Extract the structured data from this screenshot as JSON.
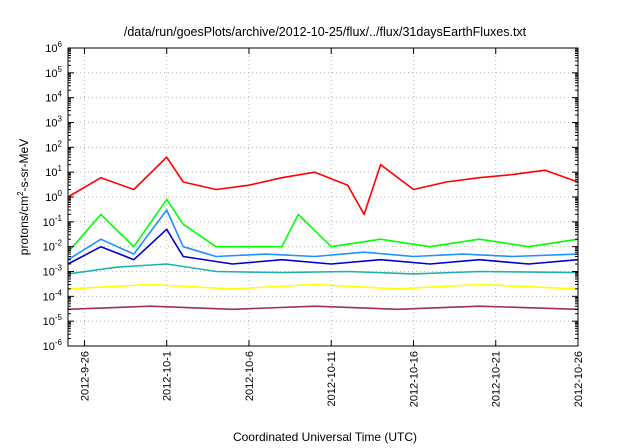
{
  "chart_data": {
    "type": "line",
    "title": "/data/run/goesPlots/archive/2012-10-25/flux/../flux/31daysEarthFluxes.txt",
    "xlabel": "Coordinated Universal Time (UTC)",
    "ylabel_parts": [
      "protons/cm",
      "2",
      "-s-sr-MeV"
    ],
    "y_scale": "log",
    "ylim_exponents": [
      -6,
      6
    ],
    "y_ticks": [
      {
        "base": "10",
        "exp": "-6"
      },
      {
        "base": "10",
        "exp": "-5"
      },
      {
        "base": "10",
        "exp": "-4"
      },
      {
        "base": "10",
        "exp": "-3"
      },
      {
        "base": "10",
        "exp": "-2"
      },
      {
        "base": "10",
        "exp": "-1"
      },
      {
        "base": "10",
        "exp": "0"
      },
      {
        "base": "10",
        "exp": "1"
      },
      {
        "base": "10",
        "exp": "2"
      },
      {
        "base": "10",
        "exp": "3"
      },
      {
        "base": "10",
        "exp": "4"
      },
      {
        "base": "10",
        "exp": "5"
      },
      {
        "base": "10",
        "exp": "6"
      }
    ],
    "x_range": [
      "2012-09-25",
      "2012-10-26"
    ],
    "x_ticks": [
      {
        "label": "2012-9-26",
        "date": "2012-09-26"
      },
      {
        "label": "2012-10-1",
        "date": "2012-10-01"
      },
      {
        "label": "2012-10-6",
        "date": "2012-10-06"
      },
      {
        "label": "2012-10-11",
        "date": "2012-10-11"
      },
      {
        "label": "2012-10-16",
        "date": "2012-10-16"
      },
      {
        "label": "2012-10-21",
        "date": "2012-10-21"
      },
      {
        "label": "2012-10-26",
        "date": "2012-10-26"
      }
    ],
    "grid": true,
    "legend": "none",
    "series": [
      {
        "color": "#ff0000",
        "x": [
          "2012-09-25",
          "2012-09-27",
          "2012-09-29",
          "2012-10-01",
          "2012-10-02",
          "2012-10-04",
          "2012-10-06",
          "2012-10-08",
          "2012-10-10",
          "2012-10-12",
          "2012-10-13",
          "2012-10-14",
          "2012-10-16",
          "2012-10-18",
          "2012-10-20",
          "2012-10-22",
          "2012-10-24",
          "2012-10-26"
        ],
        "y": [
          1.0,
          6.0,
          2.0,
          40.0,
          4.0,
          2.0,
          3.0,
          6.0,
          10.0,
          3.0,
          0.2,
          20.0,
          2.0,
          4.0,
          6.0,
          8.0,
          12.0,
          4.0
        ]
      },
      {
        "color": "#00ff00",
        "x": [
          "2012-09-25",
          "2012-09-27",
          "2012-09-29",
          "2012-10-01",
          "2012-10-02",
          "2012-10-04",
          "2012-10-06",
          "2012-10-08",
          "2012-10-09",
          "2012-10-11",
          "2012-10-14",
          "2012-10-17",
          "2012-10-20",
          "2012-10-23",
          "2012-10-26"
        ],
        "y": [
          0.006,
          0.2,
          0.01,
          0.8,
          0.08,
          0.01,
          0.01,
          0.01,
          0.2,
          0.01,
          0.02,
          0.01,
          0.02,
          0.01,
          0.02
        ]
      },
      {
        "color": "#1e90ff",
        "x": [
          "2012-09-25",
          "2012-09-27",
          "2012-09-29",
          "2012-10-01",
          "2012-10-02",
          "2012-10-04",
          "2012-10-07",
          "2012-10-10",
          "2012-10-13",
          "2012-10-16",
          "2012-10-19",
          "2012-10-22",
          "2012-10-26"
        ],
        "y": [
          0.003,
          0.02,
          0.005,
          0.3,
          0.01,
          0.004,
          0.005,
          0.004,
          0.006,
          0.004,
          0.005,
          0.004,
          0.005
        ]
      },
      {
        "color": "#0000cd",
        "x": [
          "2012-09-25",
          "2012-09-27",
          "2012-09-29",
          "2012-10-01",
          "2012-10-02",
          "2012-10-05",
          "2012-10-08",
          "2012-10-11",
          "2012-10-14",
          "2012-10-17",
          "2012-10-20",
          "2012-10-23",
          "2012-10-26"
        ],
        "y": [
          0.002,
          0.01,
          0.003,
          0.05,
          0.004,
          0.002,
          0.003,
          0.002,
          0.003,
          0.002,
          0.003,
          0.002,
          0.003
        ]
      },
      {
        "color": "#20b2aa",
        "x": [
          "2012-09-25",
          "2012-09-28",
          "2012-10-01",
          "2012-10-04",
          "2012-10-08",
          "2012-10-12",
          "2012-10-16",
          "2012-10-20",
          "2012-10-26"
        ],
        "y": [
          0.0008,
          0.0015,
          0.002,
          0.001,
          0.0009,
          0.001,
          0.0008,
          0.001,
          0.0009
        ]
      },
      {
        "color": "#ffff00",
        "x": [
          "2012-09-25",
          "2012-09-30",
          "2012-10-05",
          "2012-10-10",
          "2012-10-15",
          "2012-10-20",
          "2012-10-26"
        ],
        "y": [
          0.0002,
          0.0003,
          0.0002,
          0.0003,
          0.0002,
          0.0003,
          0.0002
        ]
      },
      {
        "color": "#9b3060",
        "x": [
          "2012-09-25",
          "2012-09-30",
          "2012-10-05",
          "2012-10-10",
          "2012-10-15",
          "2012-10-20",
          "2012-10-26"
        ],
        "y": [
          3e-05,
          4e-05,
          3e-05,
          4e-05,
          3e-05,
          4e-05,
          3e-05
        ]
      }
    ]
  }
}
